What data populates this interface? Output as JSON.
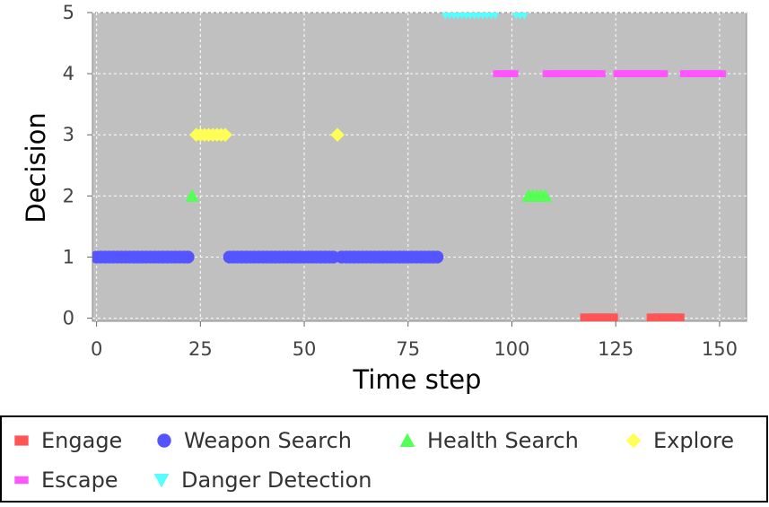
{
  "chart_data": {
    "type": "scatter",
    "x_label": "Time step",
    "y_label": "Decision",
    "xlim": [
      -1,
      156.5
    ],
    "ylim": [
      -0.05,
      5
    ],
    "xticks": [
      0,
      25,
      50,
      75,
      100,
      125,
      150
    ],
    "yticks": [
      0,
      1,
      2,
      3,
      4,
      5
    ],
    "grid": true,
    "background": "#c0c0c0",
    "series": [
      {
        "name": "Engage",
        "color": "#ff5555",
        "marker": "square",
        "x": [
          118,
          119,
          120,
          121,
          122,
          123,
          124,
          134,
          135,
          136,
          137,
          138,
          139,
          140
        ],
        "values": [
          0,
          0,
          0,
          0,
          0,
          0,
          0,
          0,
          0,
          0,
          0,
          0,
          0,
          0
        ]
      },
      {
        "name": "Weapon Search",
        "color": "#5555ff",
        "marker": "circle",
        "x": [
          0,
          1,
          2,
          3,
          4,
          5,
          6,
          7,
          8,
          9,
          10,
          11,
          12,
          13,
          14,
          15,
          16,
          17,
          18,
          19,
          20,
          21,
          22,
          32,
          33,
          34,
          35,
          36,
          37,
          38,
          39,
          40,
          41,
          42,
          43,
          44,
          45,
          46,
          47,
          48,
          49,
          50,
          51,
          52,
          53,
          54,
          55,
          56,
          57,
          59,
          60,
          61,
          62,
          63,
          64,
          65,
          66,
          67,
          68,
          69,
          70,
          71,
          72,
          73,
          74,
          75,
          76,
          77,
          78,
          79,
          80,
          81,
          82
        ],
        "values": [
          1,
          1,
          1,
          1,
          1,
          1,
          1,
          1,
          1,
          1,
          1,
          1,
          1,
          1,
          1,
          1,
          1,
          1,
          1,
          1,
          1,
          1,
          1,
          1,
          1,
          1,
          1,
          1,
          1,
          1,
          1,
          1,
          1,
          1,
          1,
          1,
          1,
          1,
          1,
          1,
          1,
          1,
          1,
          1,
          1,
          1,
          1,
          1,
          1,
          1,
          1,
          1,
          1,
          1,
          1,
          1,
          1,
          1,
          1,
          1,
          1,
          1,
          1,
          1,
          1,
          1,
          1,
          1,
          1,
          1,
          1,
          1,
          1
        ]
      },
      {
        "name": "Health Search",
        "color": "#55ff55",
        "marker": "triangle-up",
        "x": [
          23,
          104,
          105,
          106,
          107,
          108
        ],
        "values": [
          2,
          2,
          2,
          2,
          2,
          2
        ]
      },
      {
        "name": "Explore",
        "color": "#ffff55",
        "marker": "diamond",
        "x": [
          24,
          25,
          26,
          27,
          28,
          29,
          30,
          31,
          58
        ],
        "values": [
          3,
          3,
          3,
          3,
          3,
          3,
          3,
          3,
          3
        ]
      },
      {
        "name": "Escape",
        "color": "#ff55ff",
        "marker": "dash",
        "x": [
          97,
          98,
          99,
          100,
          109,
          110,
          111,
          112,
          113,
          114,
          115,
          116,
          117,
          118,
          119,
          120,
          121,
          126,
          127,
          128,
          129,
          130,
          131,
          132,
          133,
          134,
          135,
          136,
          142,
          143,
          144,
          145,
          146,
          147,
          148,
          149,
          150
        ],
        "values": [
          4,
          4,
          4,
          4,
          4,
          4,
          4,
          4,
          4,
          4,
          4,
          4,
          4,
          4,
          4,
          4,
          4,
          4,
          4,
          4,
          4,
          4,
          4,
          4,
          4,
          4,
          4,
          4,
          4,
          4,
          4,
          4,
          4,
          4,
          4,
          4,
          4
        ]
      },
      {
        "name": "Danger Detection",
        "color": "#55ffff",
        "marker": "triangle-down",
        "x": [
          84,
          85,
          86,
          87,
          88,
          89,
          90,
          91,
          92,
          93,
          94,
          95,
          96,
          101,
          102,
          103
        ],
        "values": [
          5,
          5,
          5,
          5,
          5,
          5,
          5,
          5,
          5,
          5,
          5,
          5,
          5,
          5,
          5,
          5
        ]
      }
    ]
  }
}
